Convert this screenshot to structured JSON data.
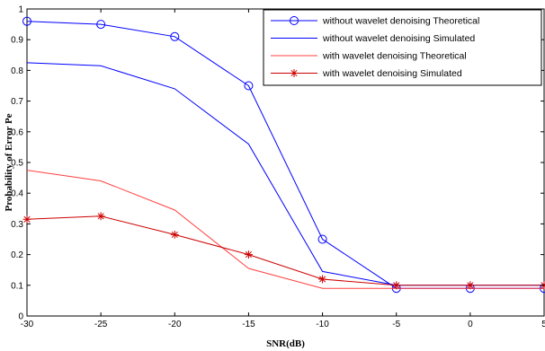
{
  "chart_data": {
    "type": "line",
    "xlabel": "SNR(dB)",
    "ylabel": "Probability of Error Pe",
    "xlim": [
      -30,
      5
    ],
    "ylim": [
      0,
      1
    ],
    "x_ticks": [
      -30,
      -25,
      -20,
      -15,
      -10,
      -5,
      0,
      5
    ],
    "y_ticks": [
      0,
      0.1,
      0.2,
      0.3,
      0.4,
      0.5,
      0.6,
      0.7,
      0.8,
      0.9,
      1
    ],
    "grid": false,
    "legend_position": "top-right",
    "series": [
      {
        "name": "without wavelet denoising Theoretical",
        "color": "#0000ff",
        "marker": "circle",
        "x": [
          -30,
          -25,
          -20,
          -15,
          -10,
          -5,
          0,
          5
        ],
        "y": [
          0.96,
          0.95,
          0.91,
          0.75,
          0.25,
          0.09,
          0.09,
          0.09
        ]
      },
      {
        "name": "without wavelet denoising Simulated",
        "color": "#0000ff",
        "marker": "none",
        "x": [
          -30,
          -25,
          -20,
          -15,
          -10,
          -5,
          0,
          5
        ],
        "y": [
          0.825,
          0.815,
          0.74,
          0.56,
          0.145,
          0.1,
          0.1,
          0.1
        ]
      },
      {
        "name": "with wavelet denoising Theoretical",
        "color": "#ff4040",
        "marker": "none",
        "x": [
          -30,
          -25,
          -20,
          -15,
          -10,
          -5,
          0,
          5
        ],
        "y": [
          0.475,
          0.44,
          0.345,
          0.155,
          0.09,
          0.09,
          0.09,
          0.09
        ]
      },
      {
        "name": "with wavelet denoising Simulated",
        "color": "#cc0000",
        "marker": "star",
        "x": [
          -30,
          -25,
          -20,
          -15,
          -10,
          -5,
          0,
          5
        ],
        "y": [
          0.315,
          0.325,
          0.265,
          0.2,
          0.12,
          0.1,
          0.1,
          0.1
        ]
      }
    ]
  }
}
